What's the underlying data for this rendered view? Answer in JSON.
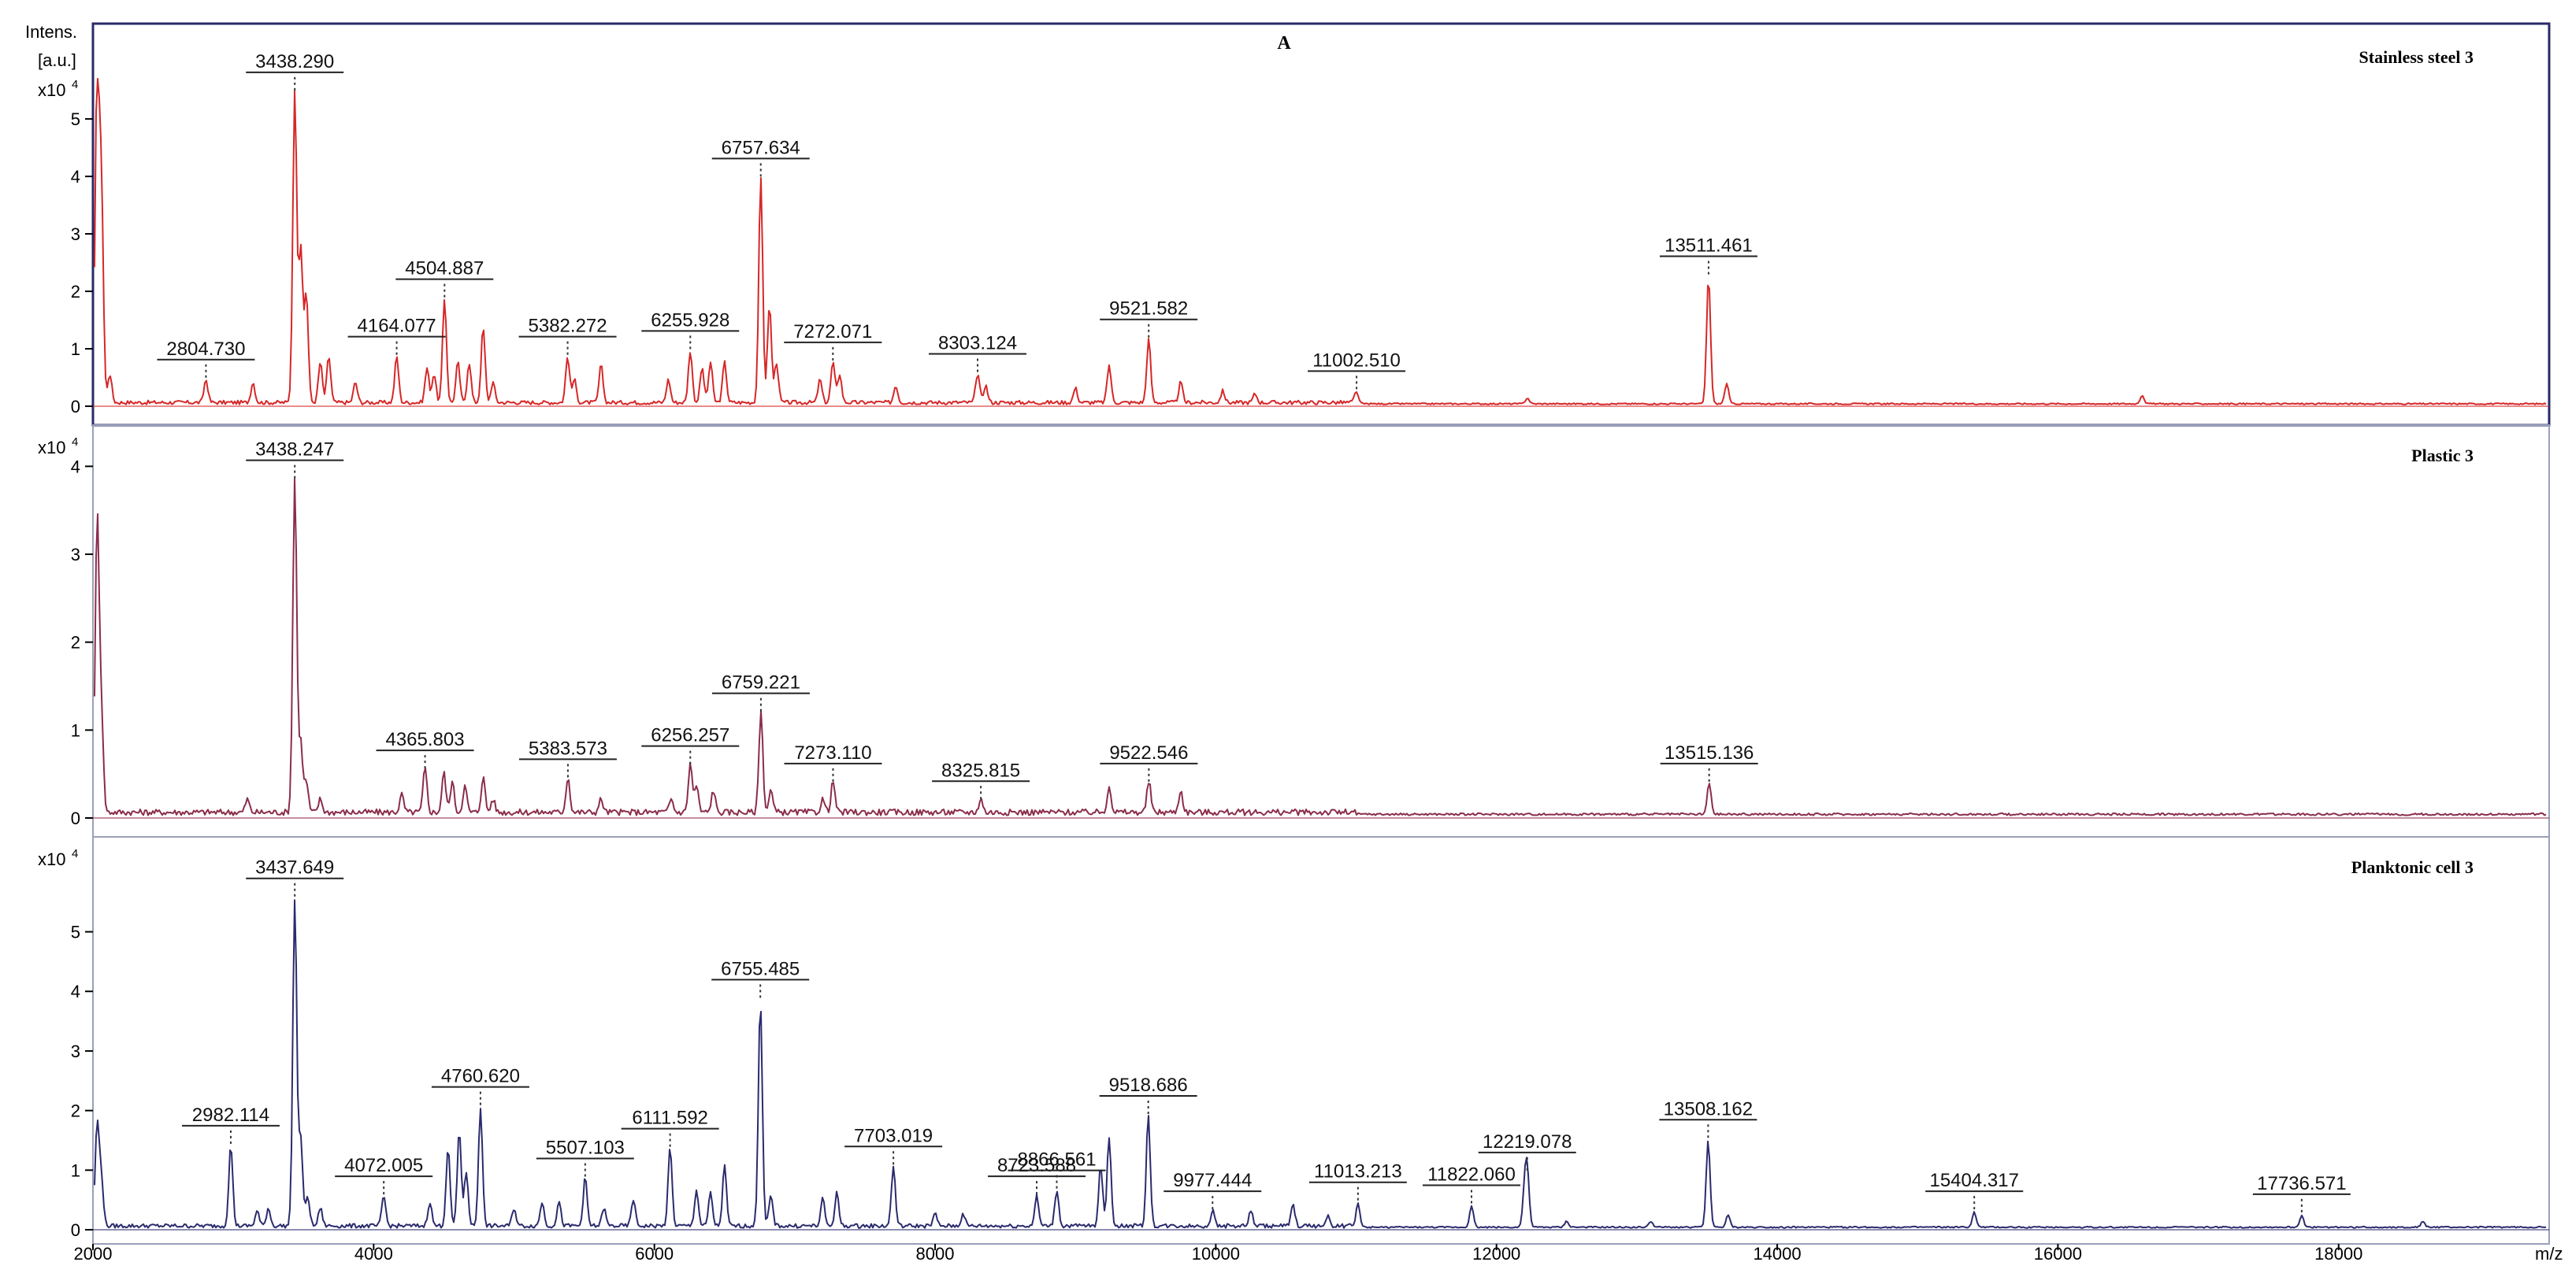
{
  "figure_label": "A",
  "y_axis_label_line1": "Intens.",
  "y_axis_label_line2": "[a.u.]",
  "x_axis_label": "m/z",
  "chart_data": [
    {
      "type": "line",
      "title": "Stainless steel 3",
      "color": "#d62728",
      "xlim": [
        2000,
        19500
      ],
      "ylim": [
        0,
        5.7
      ],
      "y_multiplier": "x10",
      "y_multiplier_exp": "4",
      "yticks": [
        0,
        1,
        2,
        3,
        4,
        5
      ],
      "xticks": [],
      "peaks": [
        {
          "label": "2804.730",
          "x": 2805,
          "y": 0.4
        },
        {
          "label": "3438.290",
          "x": 3438,
          "y": 5.4
        },
        {
          "label": "4164.077",
          "x": 4164,
          "y": 0.8
        },
        {
          "label": "4504.887",
          "x": 4505,
          "y": 1.8
        },
        {
          "label": "5382.272",
          "x": 5382,
          "y": 0.8
        },
        {
          "label": "6255.928",
          "x": 6256,
          "y": 0.9
        },
        {
          "label": "6757.634",
          "x": 6758,
          "y": 3.9
        },
        {
          "label": "7272.071",
          "x": 7272,
          "y": 0.7
        },
        {
          "label": "8303.124",
          "x": 8303,
          "y": 0.5
        },
        {
          "label": "9521.582",
          "x": 9522,
          "y": 1.1
        },
        {
          "label": "11002.510",
          "x": 11003,
          "y": 0.2
        },
        {
          "label": "13511.461",
          "x": 13511,
          "y": 2.2
        }
      ],
      "unlabeled_peaks": [
        {
          "x": 2030,
          "y": 5.7
        },
        {
          "x": 2060,
          "y": 3.7
        },
        {
          "x": 2120,
          "y": 0.5
        },
        {
          "x": 3140,
          "y": 0.35
        },
        {
          "x": 3480,
          "y": 2.7
        },
        {
          "x": 3520,
          "y": 1.9
        },
        {
          "x": 3620,
          "y": 0.7
        },
        {
          "x": 3680,
          "y": 0.8
        },
        {
          "x": 3870,
          "y": 0.35
        },
        {
          "x": 4380,
          "y": 0.6
        },
        {
          "x": 4430,
          "y": 0.5
        },
        {
          "x": 4600,
          "y": 0.7
        },
        {
          "x": 4680,
          "y": 0.7
        },
        {
          "x": 4780,
          "y": 1.3
        },
        {
          "x": 4850,
          "y": 0.35
        },
        {
          "x": 5430,
          "y": 0.4
        },
        {
          "x": 5620,
          "y": 0.65
        },
        {
          "x": 6100,
          "y": 0.4
        },
        {
          "x": 6340,
          "y": 0.6
        },
        {
          "x": 6400,
          "y": 0.7
        },
        {
          "x": 6500,
          "y": 0.7
        },
        {
          "x": 6820,
          "y": 1.7
        },
        {
          "x": 6870,
          "y": 0.7
        },
        {
          "x": 7180,
          "y": 0.4
        },
        {
          "x": 7320,
          "y": 0.5
        },
        {
          "x": 7720,
          "y": 0.3
        },
        {
          "x": 8360,
          "y": 0.3
        },
        {
          "x": 9000,
          "y": 0.25
        },
        {
          "x": 9240,
          "y": 0.65
        },
        {
          "x": 9750,
          "y": 0.35
        },
        {
          "x": 10050,
          "y": 0.2
        },
        {
          "x": 10280,
          "y": 0.15
        },
        {
          "x": 12220,
          "y": 0.1
        },
        {
          "x": 13640,
          "y": 0.35
        },
        {
          "x": 16600,
          "y": 0.15
        }
      ]
    },
    {
      "type": "line",
      "title": "Plastic 3",
      "color": "#8b2d4a",
      "xlim": [
        2000,
        19500
      ],
      "ylim": [
        0,
        4.2
      ],
      "y_multiplier": "x10",
      "y_multiplier_exp": "4",
      "yticks": [
        0,
        1,
        2,
        3,
        4
      ],
      "xticks": [],
      "peaks": [
        {
          "label": "3438.247",
          "x": 3438,
          "y": 3.8
        },
        {
          "label": "4365.803",
          "x": 4366,
          "y": 0.5
        },
        {
          "label": "5383.573",
          "x": 5384,
          "y": 0.4
        },
        {
          "label": "6256.257",
          "x": 6256,
          "y": 0.55
        },
        {
          "label": "6759.221",
          "x": 6759,
          "y": 1.15
        },
        {
          "label": "7273.110",
          "x": 7273,
          "y": 0.35
        },
        {
          "label": "8325.815",
          "x": 8326,
          "y": 0.15
        },
        {
          "label": "9522.546",
          "x": 9523,
          "y": 0.35
        },
        {
          "label": "13515.136",
          "x": 13515,
          "y": 0.35
        }
      ],
      "unlabeled_peaks": [
        {
          "x": 2030,
          "y": 3.3
        },
        {
          "x": 2060,
          "y": 1.1
        },
        {
          "x": 3100,
          "y": 0.15
        },
        {
          "x": 3480,
          "y": 0.8
        },
        {
          "x": 3520,
          "y": 0.35
        },
        {
          "x": 3620,
          "y": 0.15
        },
        {
          "x": 4200,
          "y": 0.2
        },
        {
          "x": 4500,
          "y": 0.45
        },
        {
          "x": 4560,
          "y": 0.35
        },
        {
          "x": 4650,
          "y": 0.3
        },
        {
          "x": 4780,
          "y": 0.4
        },
        {
          "x": 4850,
          "y": 0.15
        },
        {
          "x": 5620,
          "y": 0.15
        },
        {
          "x": 6120,
          "y": 0.15
        },
        {
          "x": 6300,
          "y": 0.3
        },
        {
          "x": 6420,
          "y": 0.25
        },
        {
          "x": 6830,
          "y": 0.25
        },
        {
          "x": 7200,
          "y": 0.15
        },
        {
          "x": 9240,
          "y": 0.3
        },
        {
          "x": 9750,
          "y": 0.25
        }
      ]
    },
    {
      "type": "line",
      "title": "Planktonic cell 3",
      "color": "#2b2b6e",
      "xlim": [
        2000,
        19500
      ],
      "ylim": [
        0,
        5.8
      ],
      "y_multiplier": "x10",
      "y_multiplier_exp": "4",
      "yticks": [
        0,
        1,
        2,
        3,
        4,
        5
      ],
      "xticks": [
        2000,
        4000,
        6000,
        8000,
        10000,
        12000,
        14000,
        16000,
        18000
      ],
      "peaks": [
        {
          "label": "2982.114",
          "x": 2982,
          "y": 1.35
        },
        {
          "label": "3437.649",
          "x": 3438,
          "y": 5.5
        },
        {
          "label": "4072.005",
          "x": 4072,
          "y": 0.5
        },
        {
          "label": "4760.620",
          "x": 4761,
          "y": 2.0
        },
        {
          "label": "5507.103",
          "x": 5507,
          "y": 0.8
        },
        {
          "label": "6111.592",
          "x": 6112,
          "y": 1.3
        },
        {
          "label": "6755.485",
          "x": 6755,
          "y": 3.8
        },
        {
          "label": "7703.019",
          "x": 7703,
          "y": 1.0
        },
        {
          "label": "8723.588",
          "x": 8724,
          "y": 0.5
        },
        {
          "label": "8866.561",
          "x": 8867,
          "y": 0.6
        },
        {
          "label": "9518.686",
          "x": 9519,
          "y": 1.85
        },
        {
          "label": "9977.444",
          "x": 9977,
          "y": 0.25
        },
        {
          "label": "11013.213",
          "x": 11013,
          "y": 0.4
        },
        {
          "label": "11822.060",
          "x": 11822,
          "y": 0.35
        },
        {
          "label": "12219.078",
          "x": 12219,
          "y": 0.9
        },
        {
          "label": "13508.162",
          "x": 13508,
          "y": 1.45
        },
        {
          "label": "15404.317",
          "x": 15404,
          "y": 0.25
        },
        {
          "label": "17736.571",
          "x": 17737,
          "y": 0.2
        }
      ],
      "unlabeled_peaks": [
        {
          "x": 2030,
          "y": 1.7
        },
        {
          "x": 2060,
          "y": 0.8
        },
        {
          "x": 3170,
          "y": 0.25
        },
        {
          "x": 3250,
          "y": 0.3
        },
        {
          "x": 3480,
          "y": 1.5
        },
        {
          "x": 3530,
          "y": 0.5
        },
        {
          "x": 3620,
          "y": 0.3
        },
        {
          "x": 4400,
          "y": 0.4
        },
        {
          "x": 4530,
          "y": 1.3
        },
        {
          "x": 4610,
          "y": 1.6
        },
        {
          "x": 4660,
          "y": 0.9
        },
        {
          "x": 5000,
          "y": 0.3
        },
        {
          "x": 5200,
          "y": 0.4
        },
        {
          "x": 5320,
          "y": 0.4
        },
        {
          "x": 5640,
          "y": 0.3
        },
        {
          "x": 5850,
          "y": 0.45
        },
        {
          "x": 6300,
          "y": 0.6
        },
        {
          "x": 6400,
          "y": 0.55
        },
        {
          "x": 6500,
          "y": 1.0
        },
        {
          "x": 6830,
          "y": 0.5
        },
        {
          "x": 7200,
          "y": 0.45
        },
        {
          "x": 7300,
          "y": 0.55
        },
        {
          "x": 8000,
          "y": 0.2
        },
        {
          "x": 8200,
          "y": 0.2
        },
        {
          "x": 9180,
          "y": 1.0
        },
        {
          "x": 9240,
          "y": 1.5
        },
        {
          "x": 10250,
          "y": 0.25
        },
        {
          "x": 10550,
          "y": 0.35
        },
        {
          "x": 10800,
          "y": 0.15
        },
        {
          "x": 12200,
          "y": 0.55
        },
        {
          "x": 12500,
          "y": 0.1
        },
        {
          "x": 13100,
          "y": 0.1
        },
        {
          "x": 13650,
          "y": 0.2
        },
        {
          "x": 18600,
          "y": 0.1
        }
      ]
    }
  ]
}
